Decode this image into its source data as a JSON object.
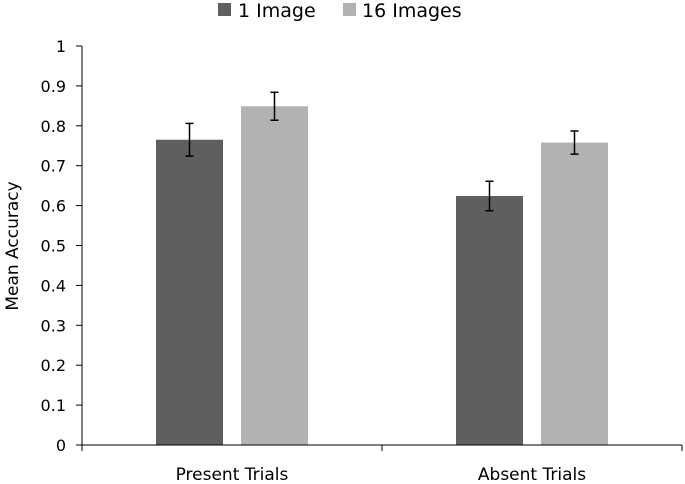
{
  "chart_data": {
    "type": "bar",
    "categories": [
      "Present Trials",
      "Absent Trials"
    ],
    "series": [
      {
        "name": "1 Image",
        "color": "#5f5f5f",
        "values": [
          0.765,
          0.624
        ],
        "error": [
          0.041,
          0.037
        ]
      },
      {
        "name": "16 Images",
        "color": "#b2b2b2",
        "values": [
          0.849,
          0.758
        ],
        "error": [
          0.035,
          0.029
        ]
      }
    ],
    "title": "",
    "xlabel": "",
    "ylabel": "Mean Accuracy",
    "ylim": [
      0,
      1
    ],
    "yticks": [
      "0",
      "0.1",
      "0.2",
      "0.3",
      "0.4",
      "0.5",
      "0.6",
      "0.7",
      "0.8",
      "0.9",
      "1"
    ],
    "grid": false,
    "legend_position": "top-center"
  }
}
